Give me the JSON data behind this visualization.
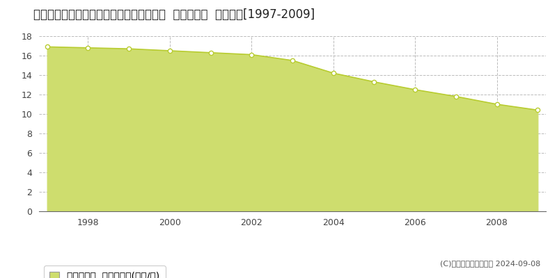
{
  "title": "徳島県鳴門市大津町大幸字松ノ下１５番５  基準地価格  地価推移[1997-2009]",
  "years": [
    1997,
    1998,
    1999,
    2000,
    2001,
    2002,
    2003,
    2004,
    2005,
    2006,
    2007,
    2008,
    2009
  ],
  "values": [
    16.9,
    16.8,
    16.7,
    16.5,
    16.3,
    16.1,
    15.5,
    14.2,
    13.3,
    12.5,
    11.8,
    11.0,
    10.4
  ],
  "ylim": [
    0,
    18
  ],
  "yticks": [
    0,
    2,
    4,
    6,
    8,
    10,
    12,
    14,
    16,
    18
  ],
  "line_color": "#b8cc30",
  "fill_color": "#cedd6e",
  "marker_color": "white",
  "marker_edge_color": "#b8cc30",
  "background_color": "#ffffff",
  "plot_bg_color": "#ffffff",
  "grid_color": "#bbbbbb",
  "legend_label": "基準地価格  平均坪単価(万円/坪)",
  "copyright_text": "(C)土地価格ドットコム 2024-09-08",
  "title_fontsize": 12,
  "axis_fontsize": 9,
  "legend_fontsize": 10,
  "copyright_fontsize": 8
}
